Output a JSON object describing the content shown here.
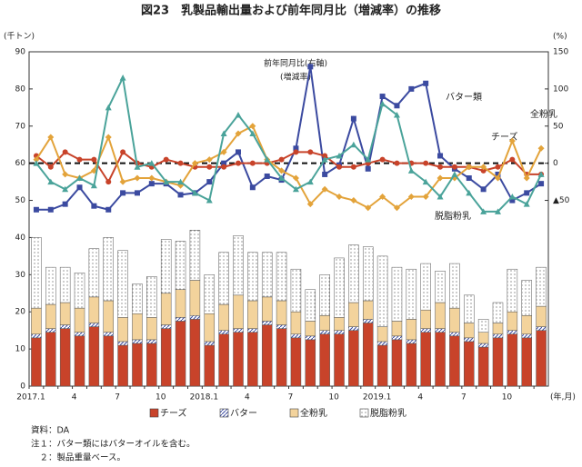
{
  "chart_data": [
    {
      "type": "bar",
      "stacked": true,
      "title": "図23　乳製品輸出量および前年同月比（増減率）の推移",
      "ylabel": "(千トン)",
      "xlabel": "(年,月)",
      "categories": [
        "2017.1",
        null,
        null,
        "4",
        null,
        null,
        "7",
        null,
        null,
        "10",
        null,
        null,
        "2018.1",
        null,
        null,
        "4",
        null,
        null,
        "7",
        null,
        null,
        "10",
        null,
        null,
        "2019.1",
        null,
        null,
        "4",
        null,
        null,
        "7",
        null,
        null,
        "10",
        null,
        null
      ],
      "ylim": [
        0,
        90
      ],
      "yticks": [
        0,
        10,
        20,
        30,
        40,
        50,
        60,
        70,
        80,
        90
      ],
      "series": [
        {
          "name": "チーズ",
          "color": "#c8432a",
          "pattern": "solid",
          "values": [
            13,
            14.5,
            15.5,
            13.5,
            16,
            13.5,
            11,
            11.5,
            11.5,
            15.5,
            17.5,
            18,
            11,
            14,
            14.5,
            14.5,
            16.5,
            15.5,
            13,
            12.5,
            14,
            14,
            15,
            17,
            11,
            12.5,
            11.5,
            14.5,
            14.5,
            13.5,
            12,
            10.5,
            13,
            14,
            13,
            15
          ]
        },
        {
          "name": "バター",
          "color": "#3b4aa0",
          "pattern": "hatch",
          "values": [
            1,
            1,
            1,
            1,
            1,
            1,
            1,
            1,
            1,
            1,
            1,
            1,
            1,
            1,
            1,
            1,
            1,
            1,
            1,
            1,
            1,
            1,
            1,
            1,
            1,
            1,
            1,
            1,
            1,
            1,
            1,
            1,
            1,
            1,
            1,
            1
          ]
        },
        {
          "name": "全粉乳",
          "color": "#f3d39c",
          "pattern": "solid",
          "values": [
            7,
            6.5,
            6,
            6.5,
            7,
            8.5,
            6.5,
            7,
            6,
            8.5,
            7.5,
            9.5,
            7.5,
            7,
            9,
            7.5,
            6.5,
            6.5,
            6,
            4,
            4,
            3.5,
            6.5,
            5,
            4,
            4,
            5.5,
            5,
            7,
            6.5,
            4,
            3,
            3,
            5,
            5,
            5.5
          ]
        },
        {
          "name": "脱脂粉乳",
          "color": "#555555",
          "pattern": "dots",
          "values": [
            19,
            10,
            9.5,
            9.5,
            13,
            17,
            18,
            8,
            11,
            14.5,
            13,
            13.5,
            10.5,
            14,
            16,
            13,
            12,
            13,
            11.5,
            8.5,
            11,
            16,
            15.5,
            14.5,
            19,
            14.5,
            13.5,
            12.5,
            8.5,
            12,
            7.5,
            3.5,
            5.5,
            11.5,
            9.5,
            10.5
          ]
        }
      ],
      "notes": [
        "資料：DA",
        "注１：バター類にはバターオイルを含む。",
        "　２：製品重量ベース。"
      ]
    },
    {
      "type": "line",
      "y2label": "(%)",
      "annotation": [
        "前年同月比(右軸)",
        "(増減率)"
      ],
      "y2lim": [
        -300,
        150
      ],
      "y2ticks": [
        {
          "value": -50,
          "label": "▲50"
        },
        0,
        50,
        100,
        150
      ],
      "zero_line": true,
      "series": [
        {
          "name": "バター類",
          "color": "#3b4aa0",
          "marker": "square",
          "axis": "y2",
          "values": [
            -62.5,
            -62.5,
            -55,
            -32.5,
            -57.5,
            -62.5,
            -40,
            -40,
            -27.5,
            -27.5,
            -42.5,
            -40,
            -25,
            0,
            15,
            -32.5,
            -17.5,
            -22.5,
            20,
            130,
            -15,
            -2.5,
            60,
            -7.5,
            90,
            77.5,
            100,
            107.5,
            10,
            -7.5,
            -20,
            -35,
            -15,
            -50,
            -40,
            -27.5
          ]
        },
        {
          "name": "チーズ",
          "color": "#c8432a",
          "marker": "circle",
          "axis": "y2",
          "values": [
            10,
            -5,
            15,
            5,
            5,
            -25,
            15,
            0,
            -5,
            5,
            0,
            -5,
            -5,
            -5,
            0,
            0,
            0,
            5,
            15,
            15,
            10,
            -5,
            -5,
            0,
            5,
            0,
            0,
            0,
            -5,
            -5,
            -5,
            -10,
            -5,
            5,
            -15,
            -15
          ]
        },
        {
          "name": "全粉乳",
          "color": "#e3a33a",
          "marker": "diamond",
          "axis": "y2",
          "values": [
            5,
            35,
            -15,
            -20,
            -10,
            35,
            -25,
            -20,
            -20,
            -25,
            -30,
            0,
            5,
            15,
            40,
            50,
            5,
            -10,
            -20,
            -55,
            -35,
            -45,
            -50,
            -60,
            -45,
            -60,
            -45,
            -45,
            -20,
            -20,
            -5,
            -5,
            -20,
            30,
            -20,
            20
          ]
        },
        {
          "name": "脱脂粉乳",
          "color": "#4aa39a",
          "marker": "triangle",
          "axis": "y2",
          "values": [
            0,
            -25,
            -35,
            -20,
            -30,
            75,
            115,
            -5,
            0,
            -25,
            -25,
            -40,
            -50,
            40,
            65,
            40,
            5,
            -20,
            -35,
            -25,
            5,
            10,
            25,
            5,
            80,
            65,
            -10,
            -25,
            -45,
            -15,
            -40,
            -65,
            -65,
            -45,
            -55,
            -15
          ]
        }
      ]
    }
  ]
}
